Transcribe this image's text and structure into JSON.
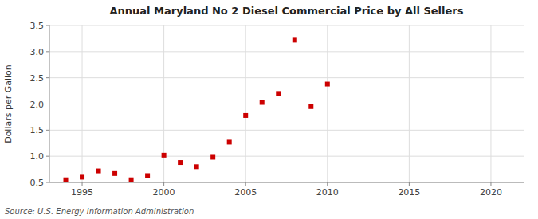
{
  "chart_data": {
    "type": "scatter",
    "title": "Annual Maryland No 2 Diesel Commercial Price by All Sellers",
    "ylabel": "Dollars per Gallon",
    "source": "Source: U.S. Energy Information Administration",
    "x": [
      1994,
      1995,
      1996,
      1997,
      1998,
      1999,
      2000,
      2001,
      2002,
      2003,
      2004,
      2005,
      2006,
      2007,
      2008,
      2009,
      2010
    ],
    "values": [
      0.55,
      0.6,
      0.72,
      0.67,
      0.55,
      0.63,
      1.02,
      0.88,
      0.8,
      0.98,
      1.27,
      1.78,
      2.03,
      2.2,
      3.22,
      1.95,
      2.38
    ],
    "color": "#cc0000",
    "marker": "square",
    "xlim": [
      1993,
      2022
    ],
    "ylim": [
      0.5,
      3.5
    ],
    "xticks": [
      1995,
      2000,
      2005,
      2010,
      2015,
      2020
    ],
    "yticks": [
      0.5,
      {
        "value": 1,
        "label": "1.0"
      },
      1.5,
      {
        "value": 2,
        "label": "2.0"
      },
      2.5,
      {
        "value": 3,
        "label": "3.0"
      },
      3.5
    ],
    "grid": true
  }
}
